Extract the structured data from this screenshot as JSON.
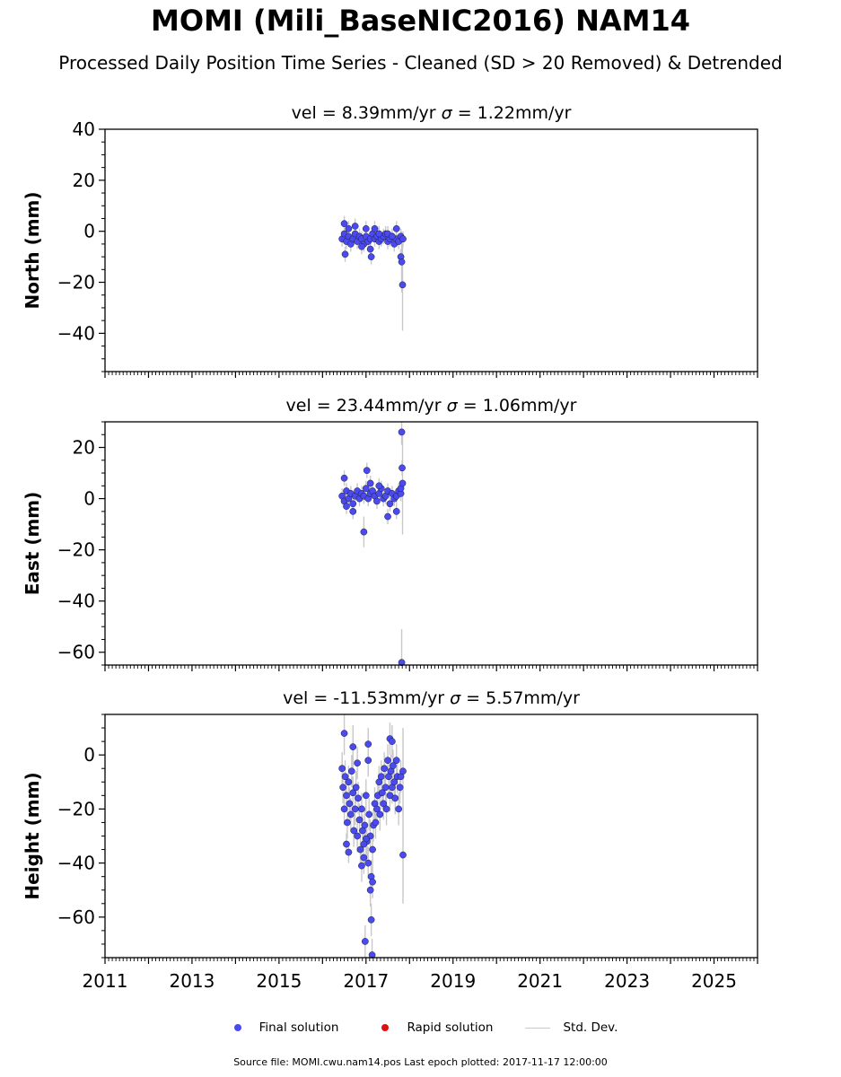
{
  "header": {
    "title": "MOMI (Mili_BaseNIC2016) NAM14",
    "subtitle": "Processed Daily Position Time Series - Cleaned (SD > 20 Removed) & Detrended"
  },
  "colors": {
    "final": "#4a4af0",
    "final_edge": "#1a1a40",
    "rapid": "#e01010",
    "stddev": "#c8c8c8"
  },
  "legend": {
    "final_label": "Final solution",
    "rapid_label": "Rapid solution",
    "stddev_label": "Std. Dev."
  },
  "footer": {
    "source": "Source file: MOMI.cwu.nam14.pos  Last epoch plotted: 2017-11-17 12:00:00"
  },
  "chart_data": [
    {
      "type": "scatter",
      "title": "vel = 8.39mm/yr   σ = 1.22mm/yr",
      "vel_text": "vel = 8.39mm/yr",
      "sigma_text": "= 1.22mm/yr",
      "ylabel": "North (mm)",
      "xlim": [
        2011,
        2026
      ],
      "ylim": [
        -55,
        40
      ],
      "yticks": [
        40,
        20,
        0,
        -20,
        -40
      ],
      "ytick_labels": [
        "40",
        "20",
        "0",
        "−20",
        "−40"
      ],
      "series": [
        {
          "x": [
            2016.45,
            2016.5,
            2016.55,
            2016.6,
            2016.65,
            2016.7,
            2016.75,
            2016.8,
            2016.85,
            2016.9,
            2016.95,
            2017.0,
            2017.05,
            2017.1,
            2017.15,
            2017.2,
            2017.25,
            2017.3,
            2017.35,
            2017.4,
            2017.45,
            2017.5,
            2017.55,
            2017.6,
            2017.65,
            2017.7,
            2017.75,
            2017.8,
            2017.85,
            2016.5,
            2016.6,
            2016.75,
            2016.9,
            2017.0,
            2017.1,
            2017.2,
            2017.3,
            2017.5,
            2017.6,
            2017.7,
            2017.8,
            2017.84,
            2016.52,
            2017.12,
            2017.82
          ],
          "y": [
            -3,
            -1,
            -4,
            -2,
            -5,
            -3,
            -1,
            -4,
            -2,
            -3,
            -5,
            -2,
            -4,
            -3,
            -1,
            -3,
            -2,
            -4,
            -3,
            -2,
            -1,
            -4,
            -3,
            -2,
            -5,
            -3,
            -4,
            -2,
            -3,
            3,
            1,
            2,
            -6,
            1,
            -7,
            1,
            -1,
            -1,
            -2,
            1,
            -10,
            -21,
            -9,
            -10,
            -12
          ],
          "sd": [
            3,
            3,
            3,
            3,
            3,
            3,
            3,
            3,
            3,
            3,
            3,
            3,
            3,
            3,
            3,
            3,
            3,
            3,
            3,
            3,
            3,
            3,
            3,
            3,
            3,
            3,
            3,
            3,
            3,
            3,
            3,
            3,
            3,
            3,
            3,
            3,
            3,
            3,
            3,
            3,
            3,
            18,
            3,
            3,
            12
          ]
        }
      ]
    },
    {
      "type": "scatter",
      "title": "vel = 23.44mm/yr   σ = 1.06mm/yr",
      "vel_text": "vel = 23.44mm/yr",
      "sigma_text": "= 1.06mm/yr",
      "ylabel": "East (mm)",
      "xlim": [
        2011,
        2026
      ],
      "ylim": [
        -65,
        30
      ],
      "yticks": [
        20,
        0,
        -20,
        -40,
        -60
      ],
      "ytick_labels": [
        "20",
        "0",
        "−20",
        "−40",
        "−60"
      ],
      "series": [
        {
          "x": [
            2016.45,
            2016.5,
            2016.55,
            2016.6,
            2016.65,
            2016.7,
            2016.75,
            2016.8,
            2016.85,
            2016.9,
            2016.95,
            2017.0,
            2017.05,
            2017.1,
            2017.15,
            2017.2,
            2017.25,
            2017.3,
            2017.35,
            2017.4,
            2017.45,
            2017.5,
            2017.55,
            2017.6,
            2017.65,
            2017.7,
            2017.75,
            2017.8,
            2016.5,
            2016.55,
            2016.7,
            2016.95,
            2017.02,
            2017.1,
            2017.3,
            2017.5,
            2017.7,
            2017.8,
            2017.82,
            2017.83,
            2017.84,
            2017.82
          ],
          "y": [
            1,
            -1,
            3,
            0,
            2,
            -2,
            1,
            3,
            0,
            2,
            1,
            4,
            0,
            2,
            3,
            1,
            -1,
            2,
            4,
            0,
            1,
            3,
            -2,
            2,
            0,
            1,
            3,
            2,
            8,
            -3,
            -5,
            -13,
            11,
            6,
            5,
            -7,
            -5,
            4,
            26,
            12,
            6,
            -64
          ],
          "sd": [
            3,
            3,
            3,
            3,
            3,
            3,
            3,
            3,
            3,
            3,
            3,
            3,
            3,
            3,
            3,
            3,
            3,
            3,
            3,
            3,
            3,
            3,
            3,
            3,
            3,
            3,
            3,
            3,
            3,
            3,
            3,
            6,
            3,
            3,
            3,
            3,
            3,
            3,
            5,
            3,
            20,
            13
          ]
        }
      ]
    },
    {
      "type": "scatter",
      "title": "vel = -11.53mm/yr   σ = 5.57mm/yr",
      "vel_text": "vel = -11.53mm/yr",
      "sigma_text": "= 5.57mm/yr",
      "ylabel": "Height (mm)",
      "xlim": [
        2011,
        2026
      ],
      "ylim": [
        -75,
        15
      ],
      "yticks": [
        0,
        -20,
        -40,
        -60
      ],
      "ytick_labels": [
        "0",
        "−20",
        "−40",
        "−60"
      ],
      "series": [
        {
          "x": [
            2016.45,
            2016.47,
            2016.5,
            2016.52,
            2016.55,
            2016.57,
            2016.6,
            2016.62,
            2016.65,
            2016.67,
            2016.7,
            2016.72,
            2016.75,
            2016.77,
            2016.8,
            2016.82,
            2016.85,
            2016.87,
            2016.9,
            2016.92,
            2016.95,
            2016.97,
            2017.0,
            2017.02,
            2017.05,
            2017.07,
            2017.1,
            2017.12,
            2017.15,
            2017.17,
            2017.2,
            2017.22,
            2017.25,
            2017.27,
            2017.3,
            2017.32,
            2017.35,
            2017.37,
            2017.4,
            2017.42,
            2017.45,
            2017.47,
            2017.5,
            2017.52,
            2017.55,
            2017.57,
            2017.6,
            2017.62,
            2017.65,
            2017.67,
            2017.7,
            2017.72,
            2017.75,
            2017.78,
            2017.8,
            2017.85,
            2016.5,
            2016.55,
            2016.6,
            2016.7,
            2016.8,
            2016.9,
            2017.0,
            2017.05,
            2017.1,
            2017.12,
            2017.14,
            2017.15,
            2016.98,
            2017.05,
            2016.95,
            2017.55,
            2017.6,
            2017.85
          ],
          "y": [
            -5,
            -12,
            -20,
            -8,
            -15,
            -25,
            -10,
            -18,
            -22,
            -6,
            -14,
            -28,
            -20,
            -12,
            -30,
            -16,
            -24,
            -35,
            -20,
            -28,
            -38,
            -26,
            -15,
            -32,
            -40,
            -22,
            -30,
            -45,
            -35,
            -26,
            -18,
            -25,
            -20,
            -15,
            -10,
            -22,
            -8,
            -14,
            -18,
            -5,
            -12,
            -20,
            -2,
            -8,
            -15,
            -6,
            -12,
            -4,
            -10,
            -16,
            -2,
            -8,
            -20,
            -12,
            -8,
            -6,
            8,
            -33,
            -36,
            3,
            -3,
            -41,
            -31,
            -2,
            -50,
            -61,
            -74,
            -47,
            -69,
            4,
            -33,
            6,
            5,
            -37
          ],
          "sd": [
            6,
            6,
            6,
            6,
            6,
            6,
            6,
            6,
            6,
            6,
            6,
            6,
            6,
            6,
            6,
            6,
            6,
            6,
            6,
            6,
            6,
            6,
            6,
            6,
            6,
            6,
            6,
            6,
            6,
            6,
            6,
            6,
            6,
            6,
            6,
            6,
            6,
            6,
            6,
            6,
            6,
            6,
            6,
            6,
            6,
            6,
            6,
            6,
            6,
            6,
            6,
            6,
            6,
            6,
            6,
            16,
            8,
            4,
            4,
            8,
            6,
            6,
            6,
            6,
            6,
            6,
            6,
            6,
            6,
            6,
            6,
            6,
            6,
            18
          ]
        }
      ]
    }
  ],
  "x_axis": {
    "ticks": [
      2011,
      2013,
      2015,
      2017,
      2019,
      2021,
      2023,
      2025
    ],
    "tick_labels": [
      "2011",
      "2013",
      "2015",
      "2017",
      "2019",
      "2021",
      "2023",
      "2025"
    ]
  }
}
